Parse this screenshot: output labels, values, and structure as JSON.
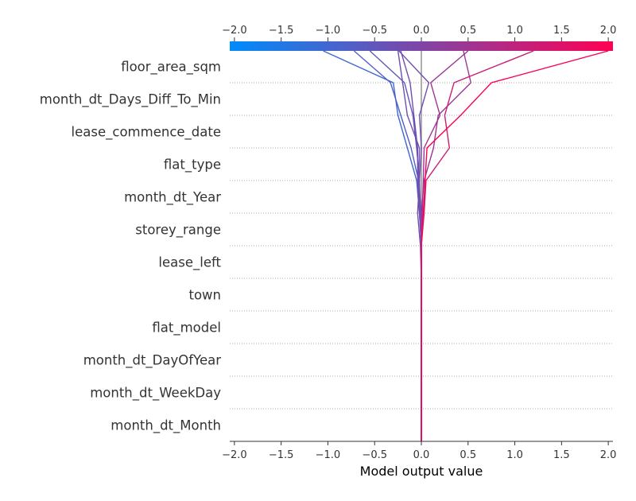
{
  "chart_data": {
    "type": "line",
    "subtype": "shap-decision-plot",
    "title": "",
    "xlabel": "Model output value",
    "ylabel": "",
    "xlim": [
      -2.05,
      2.05
    ],
    "base_value": 0.0,
    "xticks": [
      -2.0,
      -1.5,
      -1.0,
      -0.5,
      0.0,
      0.5,
      1.0,
      1.5,
      2.0
    ],
    "xtick_labels": [
      "−2.0",
      "−1.5",
      "−1.0",
      "−0.5",
      "0.0",
      "0.5",
      "1.0",
      "1.5",
      "2.0"
    ],
    "features": [
      "floor_area_sqm",
      "month_dt_Days_Diff_To_Min",
      "lease_commence_date",
      "flat_type",
      "month_dt_Year",
      "storey_range",
      "lease_left",
      "town",
      "flat_model",
      "month_dt_DayOfYear",
      "month_dt_WeekDay",
      "month_dt_Month"
    ],
    "colorbar": {
      "colors": [
        "#008bfb",
        "#ff0052"
      ],
      "range": [
        -2.05,
        2.05
      ]
    },
    "series": [
      {
        "values": [
          -1.05,
          -0.3,
          -0.25,
          -0.15,
          -0.05,
          -0.02,
          0.0,
          0.0,
          0.0,
          0.0,
          0.0,
          0.0,
          0.0
        ]
      },
      {
        "values": [
          -0.72,
          -0.33,
          -0.22,
          -0.11,
          -0.03,
          -0.01,
          0.0,
          0.0,
          0.0,
          0.0,
          0.0,
          0.0,
          0.0
        ]
      },
      {
        "values": [
          -0.55,
          -0.18,
          -0.09,
          -0.05,
          -0.02,
          -0.01,
          0.0,
          0.0,
          0.0,
          0.0,
          0.0,
          0.0,
          0.0
        ]
      },
      {
        "values": [
          -0.25,
          -0.2,
          -0.15,
          -0.02,
          -0.03,
          0.0,
          0.0,
          0.0,
          0.0,
          0.0,
          0.0,
          0.0,
          0.0
        ]
      },
      {
        "values": [
          -0.22,
          -0.12,
          -0.08,
          -0.04,
          -0.04,
          -0.02,
          0.0,
          0.0,
          0.0,
          0.0,
          0.0,
          0.0,
          0.0
        ]
      },
      {
        "values": [
          -0.24,
          0.08,
          -0.02,
          0.0,
          -0.02,
          -0.04,
          -0.01,
          0.0,
          0.0,
          0.0,
          0.0,
          0.0,
          0.0
        ]
      },
      {
        "values": [
          0.45,
          0.53,
          0.18,
          0.13,
          0.03,
          0.0,
          0.0,
          0.0,
          0.0,
          0.0,
          0.0,
          0.0,
          0.0
        ]
      },
      {
        "values": [
          0.5,
          0.1,
          0.2,
          0.03,
          0.02,
          0.01,
          0.0,
          0.0,
          0.0,
          0.0,
          0.0,
          0.0,
          0.0
        ]
      },
      {
        "values": [
          1.2,
          0.35,
          0.25,
          0.3,
          0.05,
          0.03,
          0.0,
          0.0,
          0.0,
          0.0,
          0.0,
          0.0,
          0.0
        ]
      },
      {
        "values": [
          2.0,
          0.75,
          0.42,
          0.06,
          0.04,
          0.02,
          0.0,
          0.0,
          0.0,
          0.0,
          0.0,
          0.0,
          0.0
        ]
      }
    ],
    "grid": "dotted horizontal",
    "legend": "colorbar at top"
  }
}
